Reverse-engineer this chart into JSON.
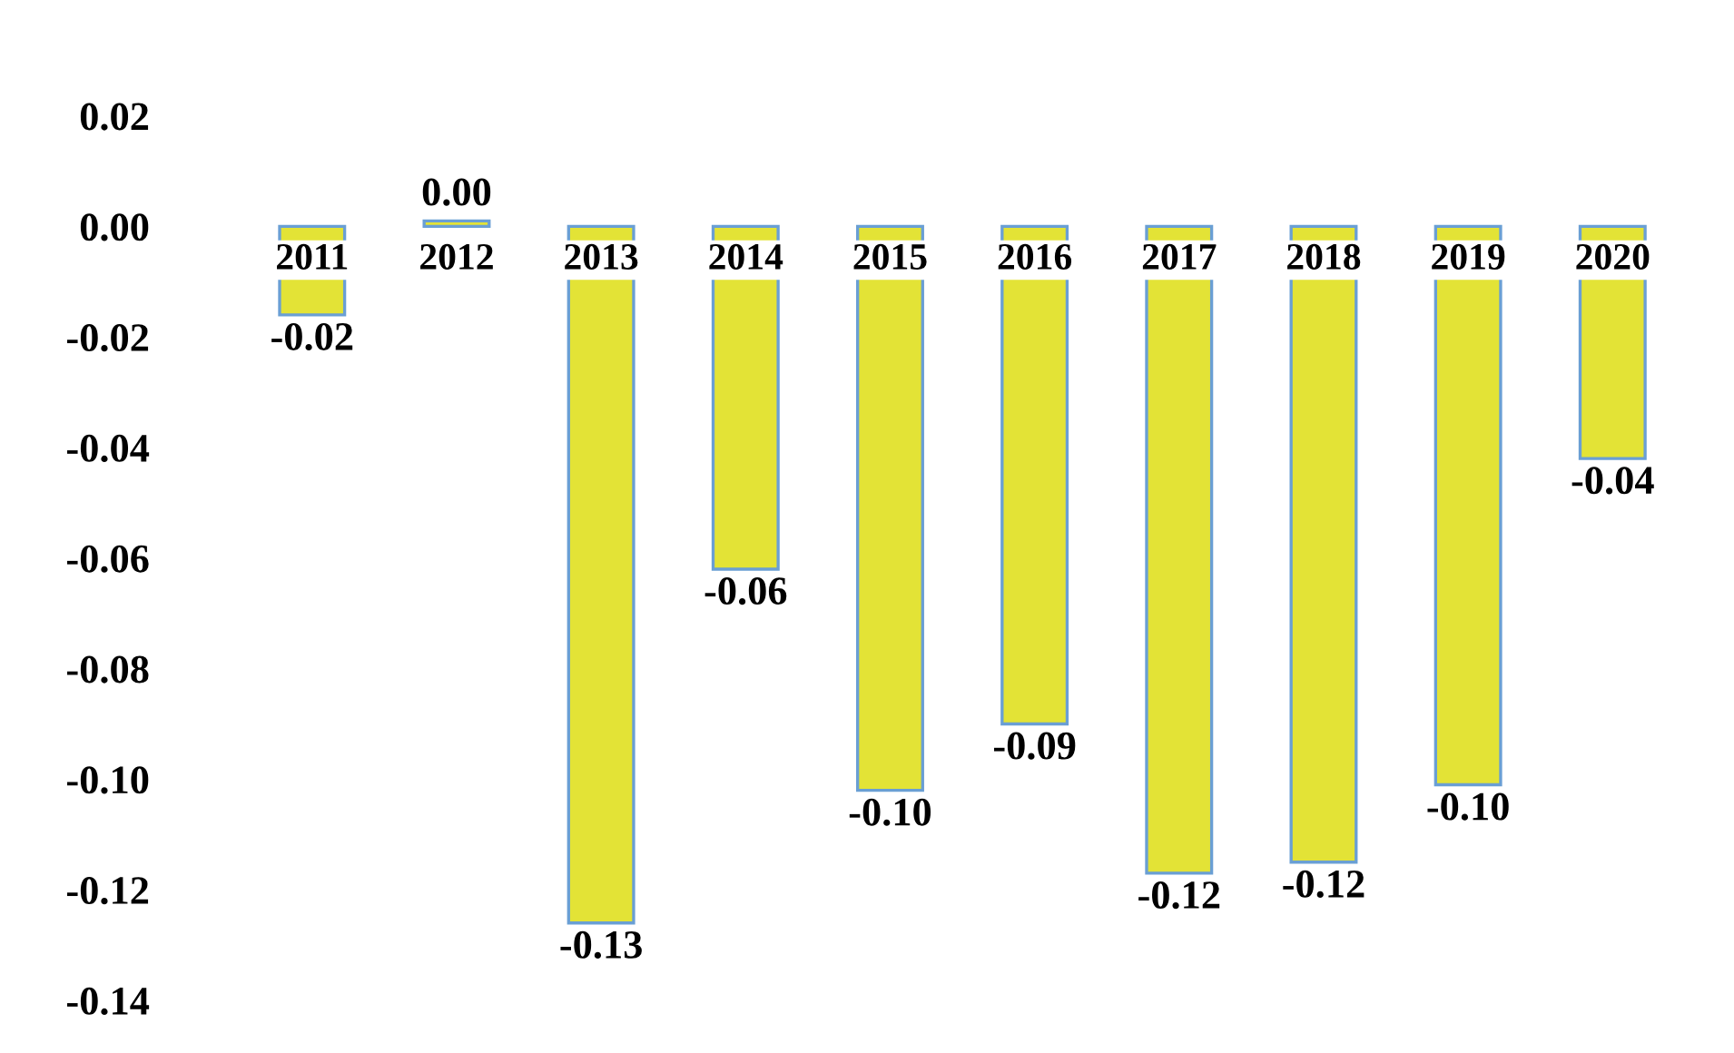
{
  "chart_data": {
    "type": "bar",
    "categories": [
      "2011",
      "2012",
      "2013",
      "2014",
      "2015",
      "2016",
      "2017",
      "2018",
      "2019",
      "2020"
    ],
    "values": [
      -0.016,
      0.001,
      -0.126,
      -0.062,
      -0.102,
      -0.09,
      -0.117,
      -0.115,
      -0.101,
      -0.042
    ],
    "value_labels": [
      "-0.02",
      "0.00",
      "-0.13",
      "-0.06",
      "-0.10",
      "-0.09",
      "-0.12",
      "-0.12",
      "-0.10",
      "-0.04"
    ],
    "color": "#e3e336",
    "ylim": [
      -0.14,
      0.02
    ],
    "yticks": [
      {
        "value": -0.14,
        "label": "-0.14"
      },
      {
        "value": -0.12,
        "label": "-0.12"
      },
      {
        "value": -0.1,
        "label": "-0.10"
      },
      {
        "value": -0.08,
        "label": "-0.08"
      },
      {
        "value": -0.06,
        "label": "-0.06"
      },
      {
        "value": -0.04,
        "label": "-0.04"
      },
      {
        "value": -0.02,
        "label": "-0.02"
      },
      {
        "value": 0.0,
        "label": "0.00"
      },
      {
        "value": 0.02,
        "label": "0.02"
      }
    ],
    "grid": false,
    "legend": false
  }
}
